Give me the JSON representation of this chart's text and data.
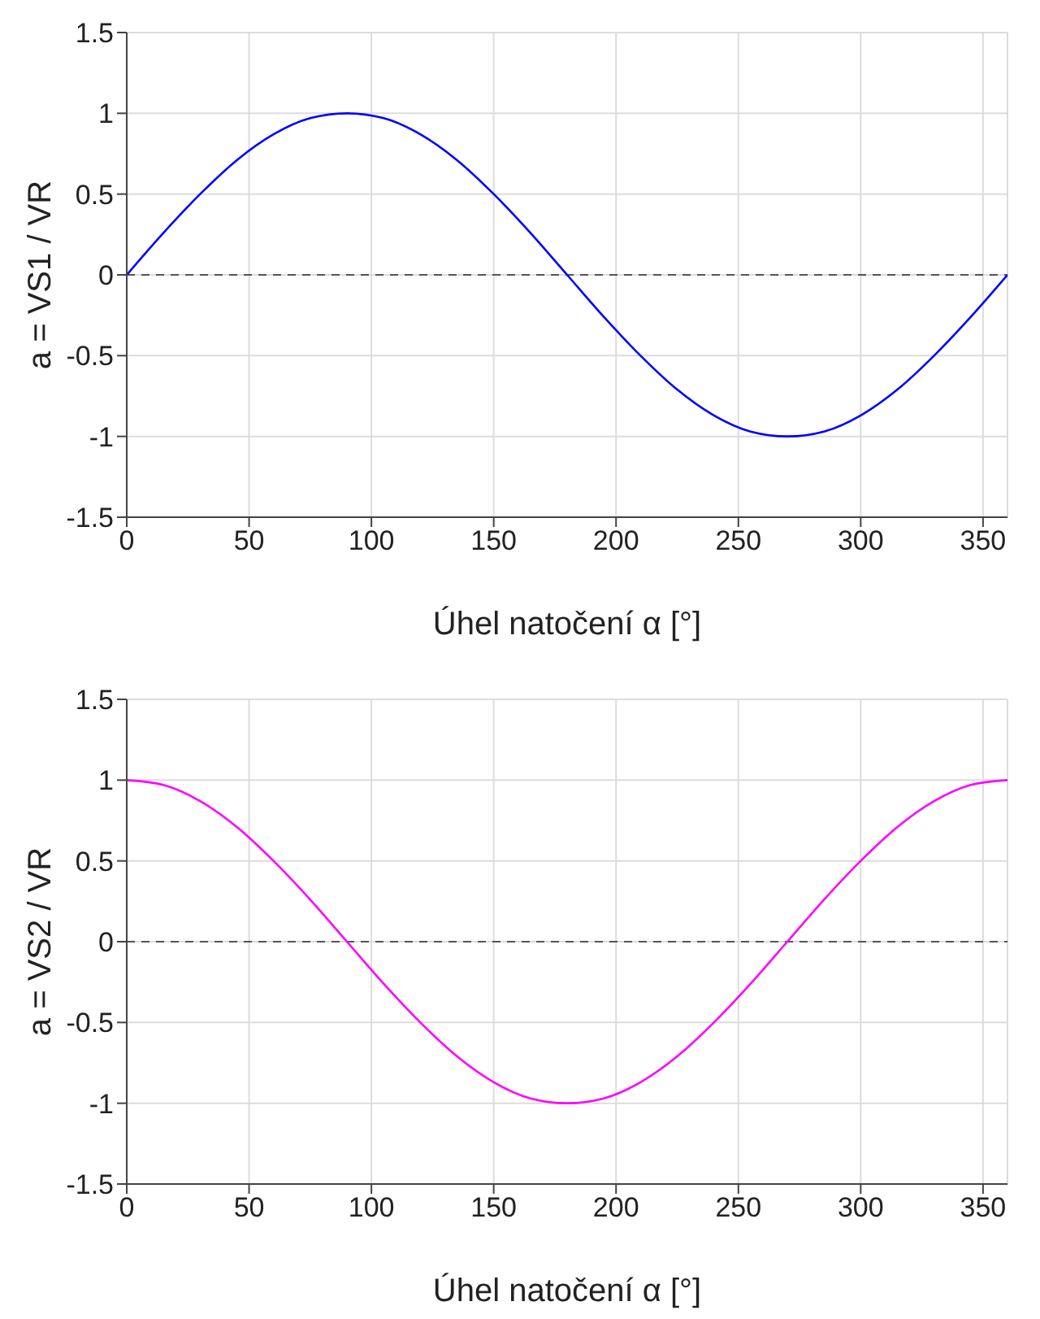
{
  "chart_data": [
    {
      "type": "line",
      "xlabel": "Úhel natočení α [°]",
      "ylabel": "a = VS1 / VR",
      "x": [
        0,
        15,
        30,
        45,
        60,
        75,
        90,
        105,
        120,
        135,
        150,
        165,
        180,
        195,
        210,
        225,
        240,
        255,
        270,
        285,
        300,
        315,
        330,
        345,
        360
      ],
      "series": [
        {
          "color": "#0000ff",
          "values": [
            0,
            0.26,
            0.5,
            0.71,
            0.87,
            0.97,
            1,
            0.97,
            0.87,
            0.71,
            0.5,
            0.26,
            0,
            -0.26,
            -0.5,
            -0.71,
            -0.87,
            -0.97,
            -1,
            -0.97,
            -0.87,
            -0.71,
            -0.5,
            -0.26,
            0
          ]
        }
      ],
      "xlim": [
        0,
        360
      ],
      "xticks": [
        0,
        50,
        100,
        150,
        200,
        250,
        300,
        350
      ],
      "ylim": [
        -1.5,
        1.5
      ],
      "yticks": [
        -1.5,
        -1,
        -0.5,
        0,
        0.5,
        1,
        1.5
      ],
      "grid": true,
      "marker": "none",
      "line_style": "solid",
      "ref_lines": [
        {
          "axis": "y",
          "value": 0,
          "color": "#555555",
          "line_style": "dashed"
        }
      ]
    },
    {
      "type": "line",
      "xlabel": "Úhel natočení α [°]",
      "ylabel": "a = VS2 / VR",
      "x": [
        0,
        15,
        30,
        45,
        60,
        75,
        90,
        105,
        120,
        135,
        150,
        165,
        180,
        195,
        210,
        225,
        240,
        255,
        270,
        285,
        300,
        315,
        330,
        345,
        360
      ],
      "series": [
        {
          "color": "#ff00ff",
          "values": [
            1,
            0.97,
            0.87,
            0.71,
            0.5,
            0.26,
            0,
            -0.26,
            -0.5,
            -0.71,
            -0.87,
            -0.97,
            -1,
            -0.97,
            -0.87,
            -0.71,
            -0.5,
            -0.26,
            0,
            0.26,
            0.5,
            0.71,
            0.87,
            0.97,
            1
          ]
        }
      ],
      "xlim": [
        0,
        360
      ],
      "xticks": [
        0,
        50,
        100,
        150,
        200,
        250,
        300,
        350
      ],
      "ylim": [
        -1.5,
        1.5
      ],
      "yticks": [
        -1.5,
        -1,
        -0.5,
        0,
        0.5,
        1,
        1.5
      ],
      "grid": true,
      "marker": "none",
      "line_style": "solid",
      "ref_lines": [
        {
          "axis": "y",
          "value": 0,
          "color": "#555555",
          "line_style": "dashed"
        }
      ]
    }
  ]
}
